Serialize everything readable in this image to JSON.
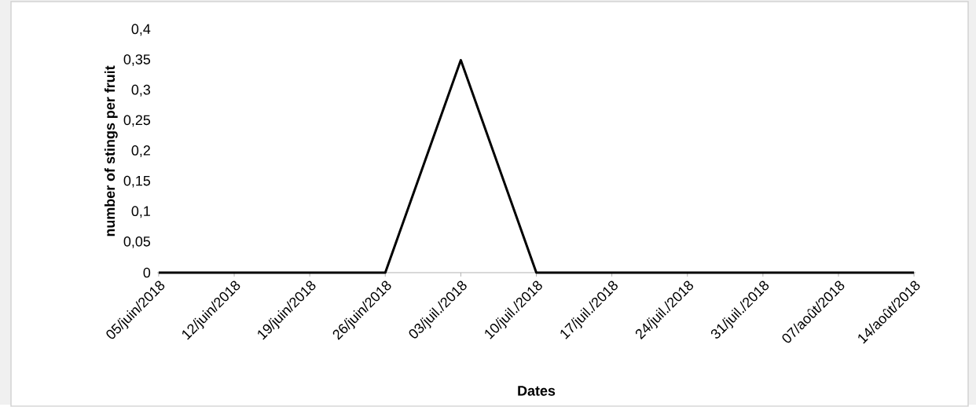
{
  "chart_data": {
    "type": "line",
    "xlabel": "Dates",
    "ylabel": "number of stings per fruit",
    "categories": [
      "05/juin/2018",
      "12/juin/2018",
      "19/juin/2018",
      "26/juin/2018",
      "03/juil./2018",
      "10/juil./2018",
      "17/juil./2018",
      "24/juil./2018",
      "31/juil./2018",
      "07/août/2018",
      "14/août/2018"
    ],
    "values": [
      0,
      0,
      0,
      0,
      0.35,
      0,
      0,
      0,
      0,
      0,
      0
    ],
    "color": "#000000",
    "ylim": [
      0,
      0.4
    ],
    "yticks": [
      0,
      {
        "value": 0.05,
        "label": "0,05"
      },
      {
        "value": 0.1,
        "label": "0,1"
      },
      {
        "value": 0.15,
        "label": "0,15"
      },
      {
        "value": 0.2,
        "label": "0,2"
      },
      {
        "value": 0.25,
        "label": "0,25"
      },
      {
        "value": 0.3,
        "label": "0,3"
      },
      {
        "value": 0.35,
        "label": "0,35"
      },
      {
        "value": 0.4,
        "label": "0,4"
      }
    ],
    "marker": "none",
    "line_style": "solid"
  }
}
